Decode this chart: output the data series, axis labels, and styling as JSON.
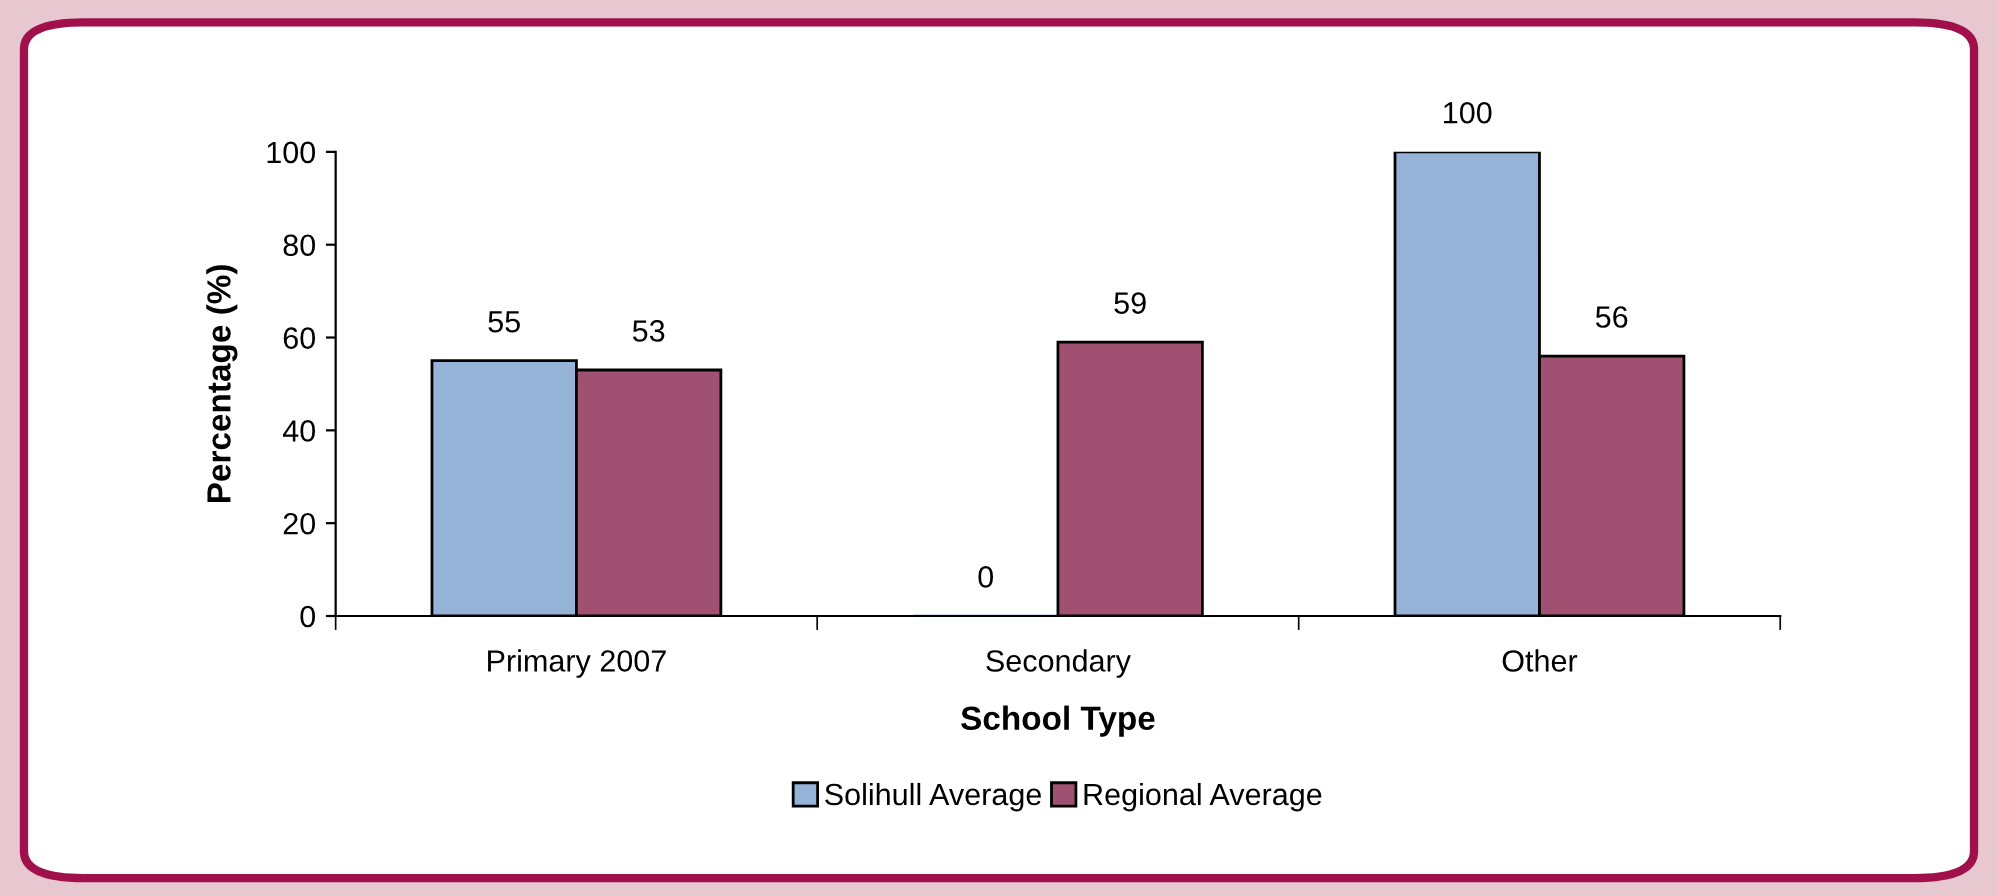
{
  "chart_data": {
    "type": "bar",
    "xlabel": "School Type",
    "ylabel": "Percentage (%)",
    "categories": [
      "Primary 2007",
      "Secondary",
      "Other"
    ],
    "series": [
      {
        "name": "Solihull Average",
        "color": "#95b3d7",
        "values": [
          55,
          0,
          100
        ]
      },
      {
        "name": "Regional Average",
        "color": "#a05070",
        "values": [
          53,
          59,
          56
        ]
      }
    ],
    "ylim": [
      0,
      100
    ],
    "yticks": [
      0,
      20,
      40,
      60,
      80,
      100
    ],
    "grid": false,
    "legend": "bottom",
    "data_labels": true
  }
}
